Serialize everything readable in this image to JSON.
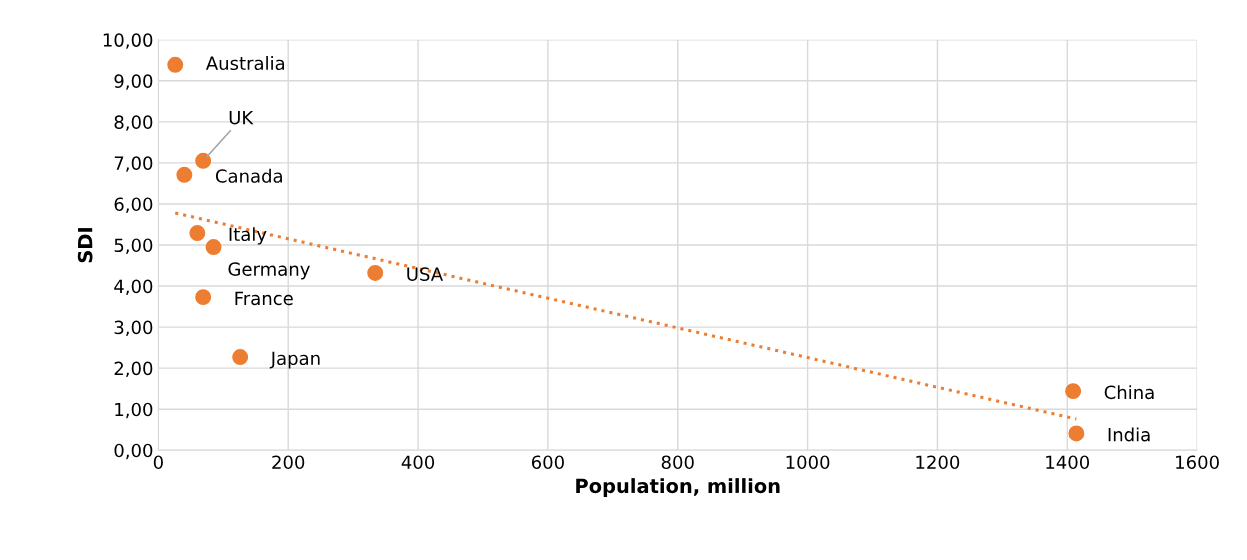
{
  "chart_data": {
    "type": "scatter",
    "xlabel": "Population, million",
    "ylabel": "SDI",
    "x": [
      26,
      69,
      40,
      60,
      85,
      69,
      334,
      126,
      1409,
      1414
    ],
    "series": [
      {
        "color": "#ed7d31",
        "values": [
          9.39,
          7.05,
          6.71,
          5.29,
          4.95,
          3.73,
          4.32,
          2.27,
          1.44,
          0.41
        ]
      },
      {
        "type": "line",
        "color": "#ed7d31",
        "line_style": "dotted",
        "marker": "none",
        "x": [
          26,
          1414
        ],
        "values": [
          5.78,
          0.76
        ]
      }
    ],
    "annotations": [
      {
        "text": "Australia",
        "x": 26,
        "y": 9.39
      },
      {
        "text": "UK",
        "x": 69,
        "y": 7.05
      },
      {
        "text": "Canada",
        "x": 40,
        "y": 6.71
      },
      {
        "text": "Italy",
        "x": 60,
        "y": 5.29
      },
      {
        "text": "Germany",
        "x": 85,
        "y": 4.95
      },
      {
        "text": "France",
        "x": 69,
        "y": 3.73
      },
      {
        "text": "USA",
        "x": 334,
        "y": 4.32
      },
      {
        "text": "Japan",
        "x": 126,
        "y": 2.27
      },
      {
        "text": "China",
        "x": 1409,
        "y": 1.44
      },
      {
        "text": "India",
        "x": 1414,
        "y": 0.41
      }
    ],
    "xlim": [
      0,
      1600
    ],
    "xticks": [
      0,
      200,
      400,
      600,
      800,
      1000,
      1200,
      1400,
      1600
    ],
    "ylim": [
      0,
      10
    ],
    "yticks": [
      {
        "value": 0,
        "label": "0,00"
      },
      {
        "value": 1,
        "label": "1,00"
      },
      {
        "value": 2,
        "label": "2,00"
      },
      {
        "value": 3,
        "label": "3,00"
      },
      {
        "value": 4,
        "label": "4,00"
      },
      {
        "value": 5,
        "label": "5,00"
      },
      {
        "value": 6,
        "label": "6,00"
      },
      {
        "value": 7,
        "label": "7,00"
      },
      {
        "value": 8,
        "label": "8,00"
      },
      {
        "value": 9,
        "label": "9,00"
      },
      {
        "value": 10,
        "label": "10,00"
      }
    ],
    "grid": true,
    "marker": "circle",
    "legend": false
  }
}
